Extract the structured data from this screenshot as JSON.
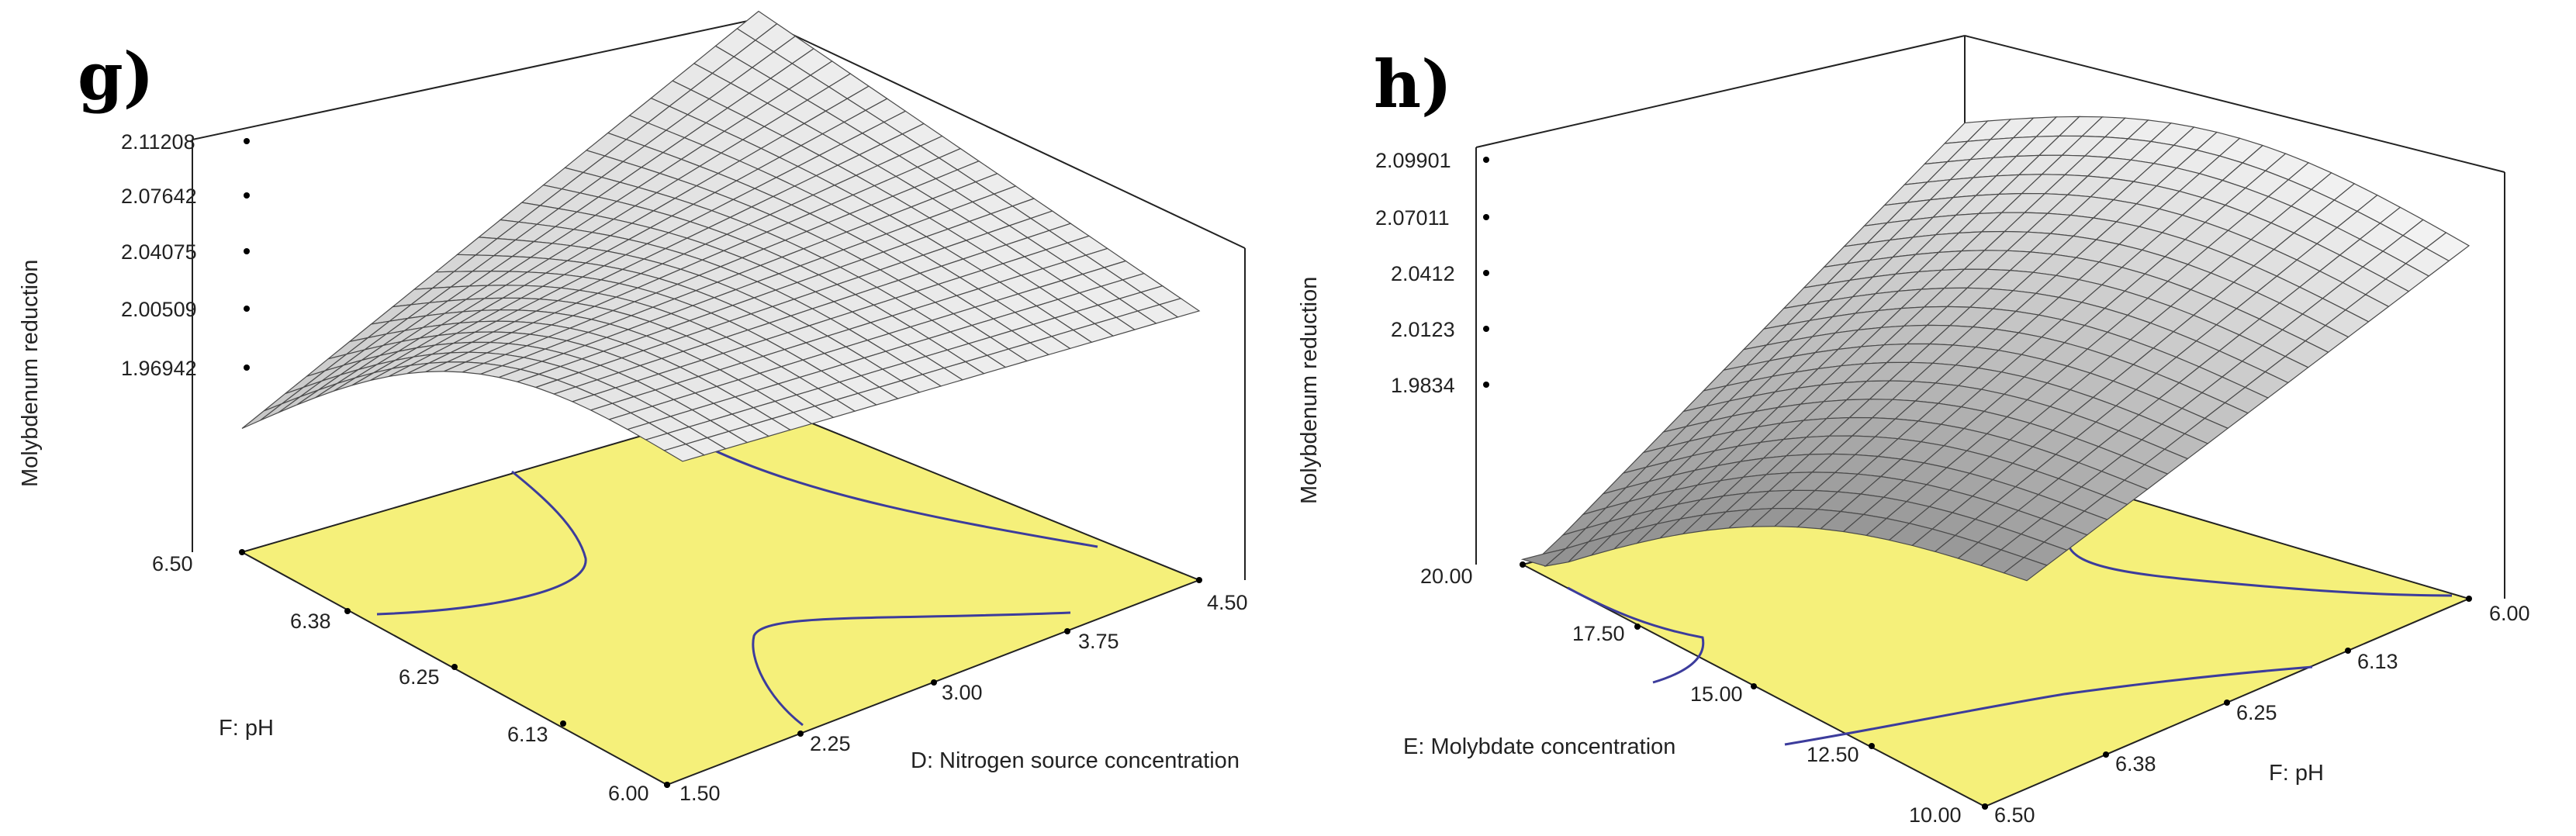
{
  "chart_data": [
    {
      "type": "surface3d",
      "panel_label": "g)",
      "zlabel": "Molybdenum reduction",
      "xlabel": "D: Nitrogen source concentration",
      "ylabel": "F: pH",
      "x_ticks": [
        "1.50",
        "2.25",
        "3.00",
        "3.75",
        "4.50"
      ],
      "y_ticks": [
        "6.00",
        "6.13",
        "6.25",
        "6.38",
        "6.50"
      ],
      "z_ticks": [
        "1.96942",
        "2.00509",
        "2.04075",
        "2.07642",
        "2.11208"
      ],
      "xlim": [
        1.5,
        4.5
      ],
      "ylim": [
        6.0,
        6.5
      ],
      "zlim": [
        1.951,
        2.112
      ]
    },
    {
      "type": "surface3d",
      "panel_label": "h)",
      "zlabel": "Molybdenum reduction",
      "xlabel": "F: pH",
      "ylabel": "E: Molybdate concentration",
      "x_ticks": [
        "6.50",
        "6.38",
        "6.25",
        "6.13",
        "6.00"
      ],
      "y_ticks": [
        "10.00",
        "12.50",
        "15.00",
        "17.50",
        "20.00"
      ],
      "z_ticks": [
        "1.9834",
        "2.0123",
        "2.0412",
        "2.07011",
        "2.09901"
      ],
      "xlim": [
        6.5,
        6.0
      ],
      "ylim": [
        10.0,
        20.0
      ],
      "zlim": [
        1.9545,
        2.099
      ]
    }
  ],
  "colors": {
    "floor": "#f5f07a",
    "contour": "#3c3c9c",
    "surface_light": "#f2f2f2",
    "surface_dark": "#5a5a5a"
  }
}
